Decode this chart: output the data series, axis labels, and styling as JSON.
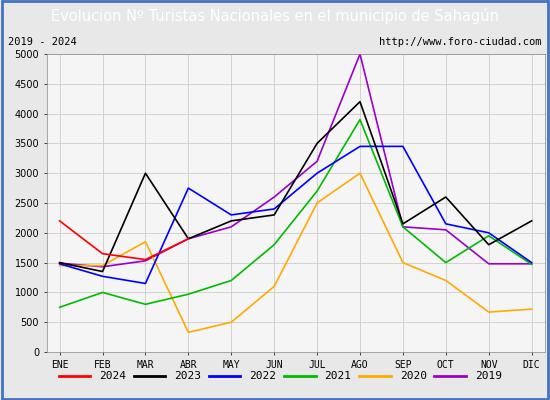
{
  "title": "Evolucion Nº Turistas Nacionales en el municipio de Sahagún",
  "subtitle_left": "2019 - 2024",
  "subtitle_right": "http://www.foro-ciudad.com",
  "months": [
    "ENE",
    "FEB",
    "MAR",
    "ABR",
    "MAY",
    "JUN",
    "JUL",
    "AGO",
    "SEP",
    "OCT",
    "NOV",
    "DIC"
  ],
  "series": {
    "2024": [
      2200,
      1650,
      1550,
      1900,
      null,
      null,
      null,
      null,
      null,
      null,
      null,
      null
    ],
    "2023": [
      1500,
      1350,
      3000,
      1900,
      2200,
      2300,
      3500,
      4200,
      2150,
      2600,
      1800,
      2200
    ],
    "2022": [
      1480,
      1270,
      1150,
      2750,
      2300,
      2400,
      3000,
      3450,
      3450,
      2150,
      2000,
      1500
    ],
    "2021": [
      750,
      1000,
      800,
      970,
      1200,
      1800,
      2700,
      3900,
      2100,
      1500,
      1950,
      1470
    ],
    "2020": [
      1450,
      1450,
      1850,
      330,
      500,
      1100,
      2500,
      3000,
      1500,
      1200,
      670,
      720
    ],
    "2019": [
      1490,
      1430,
      1530,
      1900,
      2100,
      2600,
      3200,
      5000,
      2100,
      2050,
      1480,
      1480
    ]
  },
  "colors": {
    "2024": "#ff0000",
    "2023": "#000000",
    "2022": "#0000ff",
    "2021": "#00bb00",
    "2020": "#ffaa00",
    "2019": "#9900cc"
  },
  "ylim": [
    0,
    5000
  ],
  "yticks": [
    0,
    500,
    1000,
    1500,
    2000,
    2500,
    3000,
    3500,
    4000,
    4500,
    5000
  ],
  "title_bg": "#4472c4",
  "title_color": "#ffffff",
  "title_fontsize": 10.5,
  "subtitle_fontsize": 7.5,
  "axis_label_fontsize": 7,
  "legend_fontsize": 8,
  "background_color": "#e8e8e8",
  "plot_bg": "#f5f5f5",
  "legend_bg": "#ffffff"
}
